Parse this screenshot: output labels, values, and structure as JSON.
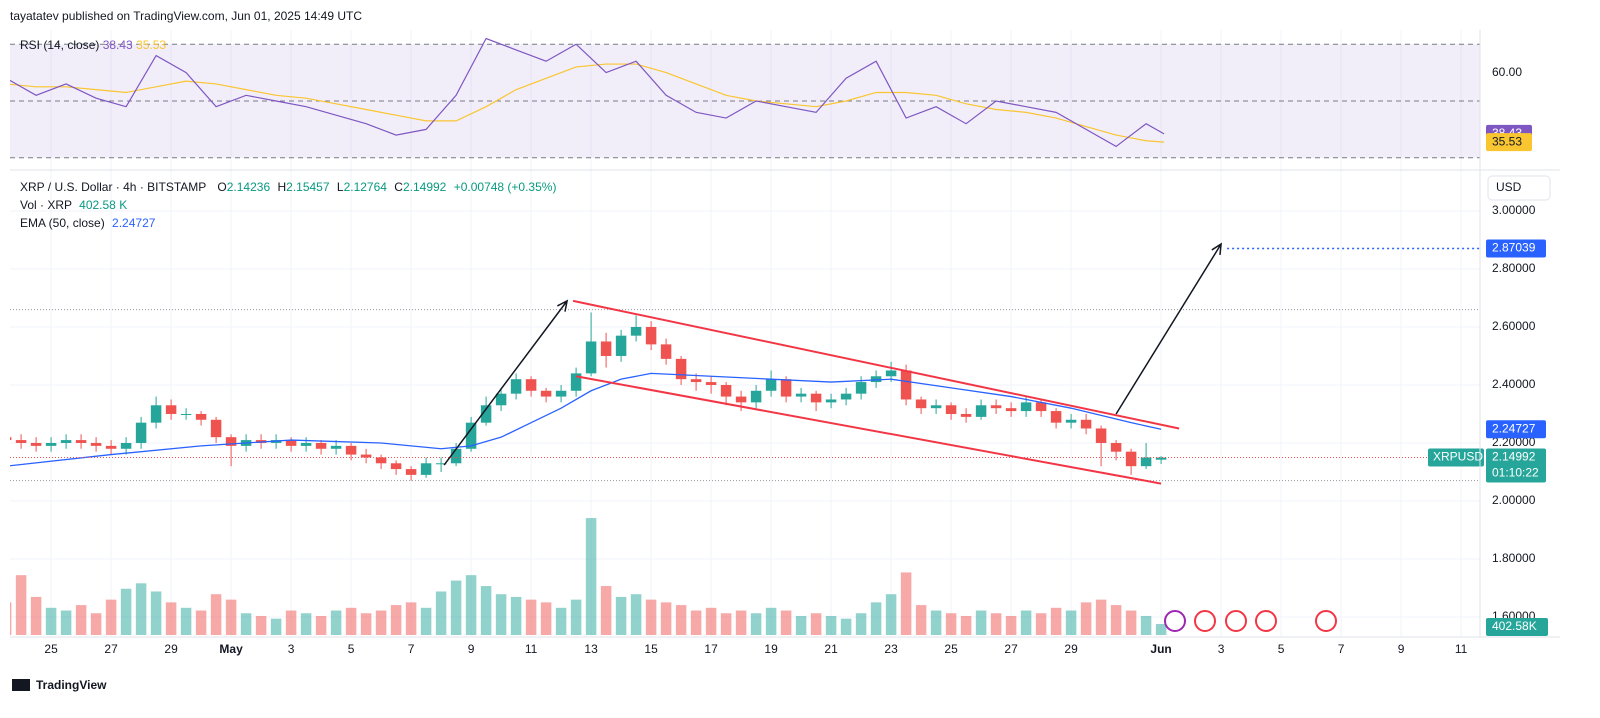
{
  "header": "tayatatev published on TradingView.com, Jun 01, 2025 14:49 UTC",
  "footer": "TradingView",
  "chart_data": {
    "type": "candlestick",
    "title": "XRP / U.S. Dollar · 4h · BITSTAMP",
    "ohlc_labels": [
      "O",
      "H",
      "L",
      "C"
    ],
    "change": "+0.00748 (+0.35%)",
    "currency": "USD",
    "symbol": "XRPUSD",
    "countdown": "01:10:22",
    "up_color": "#26a69a",
    "down_color": "#ef5350",
    "x": [
      -1.5,
      -1,
      -0.5,
      0,
      0.5,
      1,
      1.5,
      2,
      2.5,
      3,
      3.5,
      4,
      4.5,
      5,
      5.5,
      6,
      6.5,
      7,
      7.5,
      8,
      8.5,
      9,
      9.5,
      10,
      10.5,
      11,
      11.5,
      12,
      12.5,
      13,
      13.5,
      14,
      14.5,
      15,
      15.5,
      16,
      16.5,
      17,
      17.5,
      18,
      18.5,
      19,
      19.5,
      20,
      20.5,
      21,
      21.5,
      22,
      22.5,
      23,
      23.5,
      24,
      24.5,
      25,
      25.5,
      26,
      26.5,
      27,
      27.5,
      28,
      28.5,
      29,
      29.5,
      30,
      30.5,
      31,
      31.5,
      32,
      32.5,
      33,
      33.5,
      34,
      34.5,
      35,
      35.5,
      36,
      36.5,
      37
    ],
    "open": [
      2.22,
      2.21,
      2.2,
      2.19,
      2.2,
      2.21,
      2.2,
      2.19,
      2.18,
      2.2,
      2.27,
      2.33,
      2.3,
      2.3,
      2.28,
      2.22,
      2.19,
      2.21,
      2.2,
      2.21,
      2.19,
      2.2,
      2.18,
      2.19,
      2.16,
      2.15,
      2.13,
      2.11,
      2.09,
      2.13,
      2.13,
      2.18,
      2.27,
      2.33,
      2.37,
      2.42,
      2.38,
      2.36,
      2.38,
      2.44,
      2.55,
      2.5,
      2.57,
      2.6,
      2.54,
      2.49,
      2.42,
      2.41,
      2.4,
      2.36,
      2.34,
      2.38,
      2.42,
      2.36,
      2.37,
      2.34,
      2.35,
      2.37,
      2.41,
      2.43,
      2.45,
      2.35,
      2.32,
      2.33,
      2.3,
      2.29,
      2.33,
      2.32,
      2.31,
      2.34,
      2.31,
      2.27,
      2.28,
      2.25,
      2.2,
      2.17,
      2.12,
      2.14236
    ],
    "high": [
      2.24,
      2.23,
      2.22,
      2.22,
      2.23,
      2.23,
      2.22,
      2.21,
      2.22,
      2.29,
      2.36,
      2.35,
      2.32,
      2.31,
      2.29,
      2.23,
      2.23,
      2.23,
      2.23,
      2.22,
      2.22,
      2.21,
      2.21,
      2.2,
      2.18,
      2.16,
      2.14,
      2.12,
      2.15,
      2.15,
      2.2,
      2.29,
      2.36,
      2.39,
      2.44,
      2.43,
      2.39,
      2.4,
      2.46,
      2.65,
      2.58,
      2.59,
      2.64,
      2.62,
      2.56,
      2.5,
      2.44,
      2.43,
      2.41,
      2.38,
      2.4,
      2.45,
      2.43,
      2.39,
      2.38,
      2.37,
      2.39,
      2.43,
      2.45,
      2.48,
      2.47,
      2.36,
      2.35,
      2.34,
      2.32,
      2.35,
      2.35,
      2.34,
      2.36,
      2.35,
      2.32,
      2.3,
      2.3,
      2.26,
      2.21,
      2.18,
      2.2,
      2.15457
    ],
    "low": [
      2.19,
      2.18,
      2.17,
      2.17,
      2.18,
      2.18,
      2.17,
      2.16,
      2.16,
      2.18,
      2.25,
      2.28,
      2.28,
      2.26,
      2.2,
      2.12,
      2.17,
      2.18,
      2.18,
      2.17,
      2.17,
      2.16,
      2.16,
      2.14,
      2.13,
      2.11,
      2.09,
      2.07,
      2.08,
      2.1,
      2.12,
      2.17,
      2.26,
      2.31,
      2.35,
      2.36,
      2.34,
      2.34,
      2.36,
      2.43,
      2.46,
      2.48,
      2.55,
      2.52,
      2.47,
      2.4,
      2.38,
      2.37,
      2.33,
      2.31,
      2.32,
      2.36,
      2.34,
      2.34,
      2.31,
      2.32,
      2.33,
      2.35,
      2.39,
      2.41,
      2.33,
      2.3,
      2.3,
      2.28,
      2.27,
      2.28,
      2.3,
      2.29,
      2.29,
      2.29,
      2.25,
      2.25,
      2.23,
      2.12,
      2.14,
      2.09,
      2.11,
      2.12764
    ],
    "close": [
      2.21,
      2.2,
      2.19,
      2.2,
      2.21,
      2.2,
      2.19,
      2.18,
      2.2,
      2.27,
      2.33,
      2.3,
      2.3,
      2.28,
      2.22,
      2.19,
      2.21,
      2.2,
      2.21,
      2.19,
      2.2,
      2.18,
      2.19,
      2.16,
      2.15,
      2.13,
      2.11,
      2.09,
      2.13,
      2.13,
      2.18,
      2.27,
      2.33,
      2.37,
      2.42,
      2.38,
      2.36,
      2.38,
      2.44,
      2.55,
      2.5,
      2.57,
      2.6,
      2.54,
      2.49,
      2.42,
      2.41,
      2.4,
      2.36,
      2.34,
      2.38,
      2.42,
      2.36,
      2.37,
      2.34,
      2.35,
      2.37,
      2.41,
      2.43,
      2.45,
      2.35,
      2.32,
      2.33,
      2.3,
      2.29,
      2.33,
      2.32,
      2.31,
      2.34,
      2.31,
      2.27,
      2.28,
      2.25,
      2.2,
      2.17,
      2.12,
      2.15,
      2.14992
    ],
    "volume": [
      1200,
      2200,
      1400,
      1000,
      900,
      1100,
      800,
      1300,
      1700,
      1900,
      1600,
      1200,
      1000,
      900,
      1500,
      1300,
      800,
      700,
      600,
      900,
      800,
      700,
      900,
      1000,
      800,
      900,
      1100,
      1200,
      1000,
      1600,
      2000,
      2200,
      1800,
      1500,
      1400,
      1300,
      1200,
      1000,
      1300,
      4300,
      1800,
      1400,
      1500,
      1300,
      1200,
      1100,
      900,
      1000,
      800,
      900,
      800,
      1000,
      900,
      700,
      800,
      700,
      600,
      800,
      1200,
      1500,
      2300,
      1100,
      900,
      800,
      700,
      900,
      800,
      700,
      900,
      800,
      1000,
      900,
      1200,
      1300,
      1100,
      900,
      700,
      402.58
    ],
    "vol_name": "Vol · XRP",
    "vol_label": "402.58 K",
    "vol_tag": "402.58K",
    "vlim": [
      0,
      5000
    ],
    "ema": {
      "name": "EMA (50, close)",
      "color": "#2962ff",
      "x": [
        -1.5,
        2,
        5,
        8,
        11,
        13,
        14,
        15,
        16,
        17,
        18,
        19,
        20,
        22,
        24,
        26,
        28,
        30,
        32,
        34,
        36,
        37
      ],
      "values": [
        2.12,
        2.16,
        2.19,
        2.21,
        2.2,
        2.18,
        2.19,
        2.22,
        2.27,
        2.32,
        2.38,
        2.42,
        2.44,
        2.43,
        2.42,
        2.41,
        2.42,
        2.39,
        2.36,
        2.32,
        2.27,
        2.24727
      ]
    },
    "rsi": {
      "name": "RSI (14, close)",
      "color": "#7e57c2",
      "ma_color": "#f9c531",
      "x": [
        -1.5,
        -0.5,
        0.5,
        1.5,
        2.5,
        3.5,
        4.5,
        5.5,
        6.5,
        7.5,
        8.5,
        9.5,
        10.5,
        11.5,
        12.5,
        13.5,
        14.5,
        15.5,
        16.5,
        17.5,
        18.5,
        19.5,
        20.5,
        21.5,
        22.5,
        23.5,
        24.5,
        25.5,
        26.5,
        27.5,
        28.5,
        29.5,
        30.5,
        31.5,
        32.5,
        33.5,
        34.5,
        35.5,
        36.5,
        37.1
      ],
      "values": [
        58,
        52,
        56,
        51,
        48,
        66,
        60,
        48,
        52,
        50,
        48,
        45,
        42,
        38,
        40,
        52,
        72,
        68,
        64,
        70,
        60,
        64,
        52,
        46,
        44,
        50,
        48,
        46,
        58,
        64,
        44,
        48,
        42,
        50,
        48,
        46,
        40,
        34,
        42,
        38.43
      ],
      "ma": [
        56,
        55,
        55,
        54,
        53,
        55,
        57,
        56,
        54,
        52,
        51,
        49,
        47,
        45,
        43,
        43,
        48,
        54,
        58,
        62,
        63,
        63,
        60,
        56,
        52,
        50,
        49,
        48,
        50,
        53,
        53,
        52,
        49,
        47,
        46,
        44,
        41,
        38,
        36,
        35.53
      ],
      "ylim": [
        25,
        75
      ],
      "levels": [
        70,
        50,
        30
      ],
      "yticks": [
        {
          "value": 60,
          "label": "60.00"
        }
      ]
    },
    "xlim": [
      -1.37,
      47.63
    ],
    "xticks": [
      {
        "value": 0,
        "label": "25"
      },
      {
        "value": 2,
        "label": "27"
      },
      {
        "value": 4,
        "label": "29"
      },
      {
        "value": 6,
        "label": "May"
      },
      {
        "value": 8,
        "label": "3"
      },
      {
        "value": 10,
        "label": "5"
      },
      {
        "value": 12,
        "label": "7"
      },
      {
        "value": 14,
        "label": "9"
      },
      {
        "value": 16,
        "label": "11"
      },
      {
        "value": 18,
        "label": "13"
      },
      {
        "value": 20,
        "label": "15"
      },
      {
        "value": 22,
        "label": "17"
      },
      {
        "value": 24,
        "label": "19"
      },
      {
        "value": 26,
        "label": "21"
      },
      {
        "value": 28,
        "label": "23"
      },
      {
        "value": 30,
        "label": "25"
      },
      {
        "value": 32,
        "label": "27"
      },
      {
        "value": 34,
        "label": "29"
      },
      {
        "value": 37,
        "label": "Jun"
      },
      {
        "value": 39,
        "label": "3"
      },
      {
        "value": 41,
        "label": "5"
      },
      {
        "value": 43,
        "label": "7"
      },
      {
        "value": 45,
        "label": "9"
      },
      {
        "value": 47,
        "label": "11"
      }
    ],
    "ylim": [
      1.531,
      3.124
    ],
    "yticks": [
      {
        "value": 3,
        "label": "3.00000"
      },
      {
        "value": 2.8,
        "label": "2.80000"
      },
      {
        "value": 2.6,
        "label": "2.60000"
      },
      {
        "value": 2.4,
        "label": "2.40000"
      },
      {
        "value": 2.2,
        "label": "2.20000"
      },
      {
        "value": 2,
        "label": "2.00000"
      },
      {
        "value": 1.8,
        "label": "1.80000"
      },
      {
        "value": 1.6,
        "label": "1.60000"
      }
    ],
    "grid": true,
    "channel_color": "#f23645",
    "channel": [
      {
        "x": [
          17.4,
          37.6
        ],
        "y": [
          2.69,
          2.25
        ]
      },
      {
        "x": [
          17.5,
          37.0
        ],
        "y": [
          2.43,
          2.06
        ]
      }
    ],
    "arrows": [
      {
        "x": [
          13.1,
          17.2
        ],
        "y": [
          2.124,
          2.69
        ]
      },
      {
        "x": [
          35.5,
          39.0
        ],
        "y": [
          2.3,
          2.886
        ]
      }
    ],
    "levels": [
      2.66,
      2.07
    ],
    "target": {
      "x": 39.2,
      "value": 2.87039,
      "color": "#2962ff"
    }
  }
}
